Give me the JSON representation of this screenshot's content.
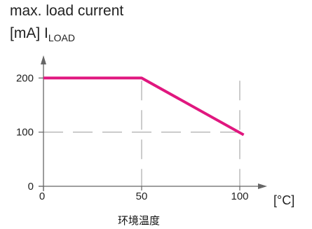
{
  "chart_data": {
    "type": "line",
    "title_line1": "max. load current",
    "ylabel_unit": "[mA]",
    "ylabel_symbol": "I",
    "ylabel_subscript": "LOAD",
    "xunit": "[°C]",
    "xcaption": "环境温度",
    "xticks": [
      0,
      50,
      100
    ],
    "yticks": [
      0,
      100,
      200
    ],
    "xlim": [
      0,
      110
    ],
    "ylim": [
      0,
      230
    ],
    "grid": "dashed at 50 and 100",
    "series": [
      {
        "color": "#e0177f",
        "x": [
          0,
          50,
          102
        ],
        "y": [
          200,
          200,
          95
        ]
      }
    ]
  }
}
